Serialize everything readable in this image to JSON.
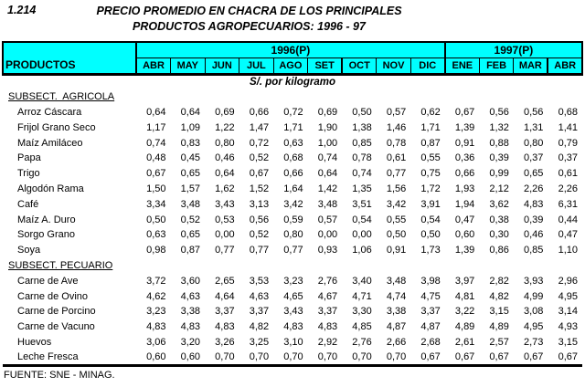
{
  "page": {
    "index_label": "1.214",
    "title_line1": "PRECIO PROMEDIO EN CHACRA DE LOS PRINCIPALES",
    "title_line2": "PRODUCTOS AGROPECUARIOS: 1996 - 97",
    "unit_label": "S/. por kilogramo",
    "source": "FUENTE: SNE - MINAG."
  },
  "colors": {
    "header_bg": "#00FFFF",
    "border": "#000000",
    "text": "#000000"
  },
  "table": {
    "products_header": "PRODUCTOS",
    "year_groups": [
      {
        "label": "1996(P)",
        "months": [
          "ABR",
          "MAY",
          "JUN",
          "JUL",
          "AGO",
          "SET",
          "OCT",
          "NOV",
          "DIC"
        ]
      },
      {
        "label": "1997(P)",
        "months": [
          "ENE",
          "FEB",
          "MAR",
          "ABR"
        ]
      }
    ],
    "sections": [
      {
        "label": "SUBSECT.  AGRICOLA",
        "rows": [
          {
            "product": "Arroz Cáscara",
            "values": [
              "0,64",
              "0,64",
              "0,69",
              "0,66",
              "0,72",
              "0,69",
              "0,50",
              "0,57",
              "0,62",
              "0,67",
              "0,56",
              "0,56",
              "0,68"
            ]
          },
          {
            "product": "Frijol Grano Seco",
            "values": [
              "1,17",
              "1,09",
              "1,22",
              "1,47",
              "1,71",
              "1,90",
              "1,38",
              "1,46",
              "1,71",
              "1,39",
              "1,32",
              "1,31",
              "1,41"
            ]
          },
          {
            "product": "Maíz Amiláceo",
            "values": [
              "0,74",
              "0,83",
              "0,80",
              "0,72",
              "0,63",
              "1,00",
              "0,85",
              "0,78",
              "0,87",
              "0,91",
              "0,88",
              "0,80",
              "0,79"
            ]
          },
          {
            "product": "Papa",
            "values": [
              "0,48",
              "0,45",
              "0,46",
              "0,52",
              "0,68",
              "0,74",
              "0,78",
              "0,61",
              "0,55",
              "0,36",
              "0,39",
              "0,37",
              "0,37"
            ]
          },
          {
            "product": "Trigo",
            "values": [
              "0,67",
              "0,65",
              "0,64",
              "0,67",
              "0,66",
              "0,64",
              "0,74",
              "0,77",
              "0,75",
              "0,66",
              "0,99",
              "0,65",
              "0,61"
            ]
          },
          {
            "product": "Algodón Rama",
            "values": [
              "1,50",
              "1,57",
              "1,62",
              "1,52",
              "1,64",
              "1,42",
              "1,35",
              "1,56",
              "1,72",
              "1,93",
              "2,12",
              "2,26",
              "2,26"
            ]
          },
          {
            "product": "Café",
            "values": [
              "3,34",
              "3,48",
              "3,43",
              "3,13",
              "3,42",
              "3,48",
              "3,51",
              "3,42",
              "3,91",
              "1,94",
              "3,62",
              "4,83",
              "6,31"
            ]
          },
          {
            "product": "Maíz A. Duro",
            "values": [
              "0,50",
              "0,52",
              "0,53",
              "0,56",
              "0,59",
              "0,57",
              "0,54",
              "0,55",
              "0,54",
              "0,47",
              "0,38",
              "0,39",
              "0,44"
            ]
          },
          {
            "product": "Sorgo Grano",
            "values": [
              "0,63",
              "0,65",
              "0,00",
              "0,52",
              "0,80",
              "0,00",
              "0,00",
              "0,50",
              "0,50",
              "0,60",
              "0,30",
              "0,46",
              "0,47"
            ]
          },
          {
            "product": "Soya",
            "values": [
              "0,98",
              "0,87",
              "0,77",
              "0,77",
              "0,77",
              "0,93",
              "1,06",
              "0,91",
              "1,73",
              "1,39",
              "0,86",
              "0,85",
              "1,10"
            ]
          }
        ]
      },
      {
        "label": "SUBSECT. PECUARIO",
        "rows": [
          {
            "product": "Carne de Ave",
            "values": [
              "3,72",
              "3,60",
              "2,65",
              "3,53",
              "3,23",
              "2,76",
              "3,40",
              "3,48",
              "3,98",
              "3,97",
              "2,82",
              "3,93",
              "2,96"
            ]
          },
          {
            "product": "Carne de Ovino",
            "values": [
              "4,62",
              "4,63",
              "4,64",
              "4,63",
              "4,65",
              "4,67",
              "4,71",
              "4,74",
              "4,75",
              "4,81",
              "4,82",
              "4,99",
              "4,95"
            ]
          },
          {
            "product": "Carne de Porcino",
            "values": [
              "3,23",
              "3,38",
              "3,37",
              "3,37",
              "3,43",
              "3,37",
              "3,30",
              "3,38",
              "3,37",
              "3,22",
              "3,15",
              "3,08",
              "3,14"
            ]
          },
          {
            "product": "Carne de Vacuno",
            "values": [
              "4,83",
              "4,83",
              "4,83",
              "4,82",
              "4,83",
              "4,83",
              "4,85",
              "4,87",
              "4,87",
              "4,89",
              "4,89",
              "4,95",
              "4,93"
            ]
          },
          {
            "product": "Huevos",
            "values": [
              "3,06",
              "3,20",
              "3,26",
              "3,25",
              "3,10",
              "2,92",
              "2,76",
              "2,66",
              "2,68",
              "2,61",
              "2,57",
              "2,73",
              "3,15"
            ]
          },
          {
            "product": "Leche Fresca",
            "values": [
              "0,60",
              "0,60",
              "0,70",
              "0,70",
              "0,70",
              "0,70",
              "0,70",
              "0,70",
              "0,67",
              "0,67",
              "0,67",
              "0,67",
              "0,67"
            ]
          }
        ]
      }
    ]
  }
}
